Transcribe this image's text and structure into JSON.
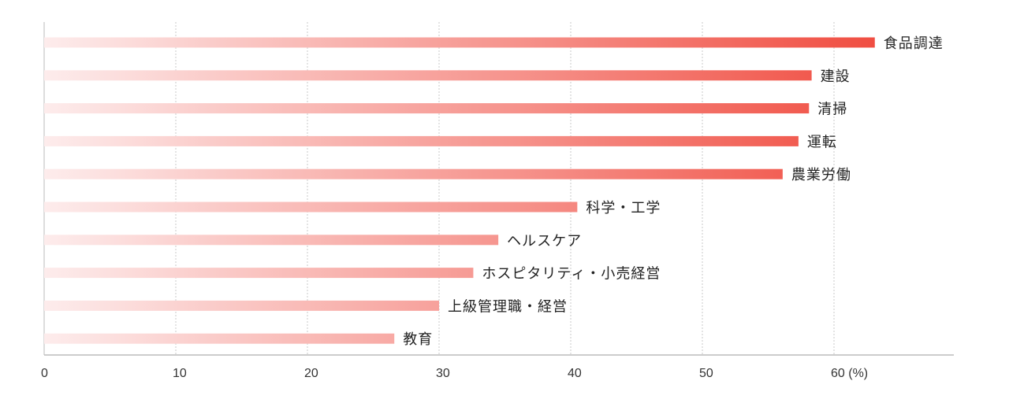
{
  "chart_data": {
    "type": "bar",
    "orientation": "horizontal",
    "categories": [
      "食品調達",
      "建設",
      "清掃",
      "運転",
      "農業労働",
      "科学・工学",
      "ヘルスケア",
      "ホスピタリティ・小売経営",
      "上級管理職・経営",
      "教育"
    ],
    "values": [
      63.1,
      58.3,
      58.1,
      57.3,
      56.1,
      40.5,
      34.5,
      32.6,
      30.0,
      26.6
    ],
    "xticks": [
      "0",
      "10",
      "20",
      "30",
      "40",
      "50",
      "60 (%)"
    ],
    "xtick_values": [
      0,
      10,
      20,
      30,
      40,
      50,
      60
    ],
    "xlim": [
      0,
      69
    ],
    "grid": true,
    "xlabel": "",
    "ylabel": "",
    "title": "",
    "colors": {
      "start": "#fdecec",
      "end": "#f04e42"
    }
  }
}
